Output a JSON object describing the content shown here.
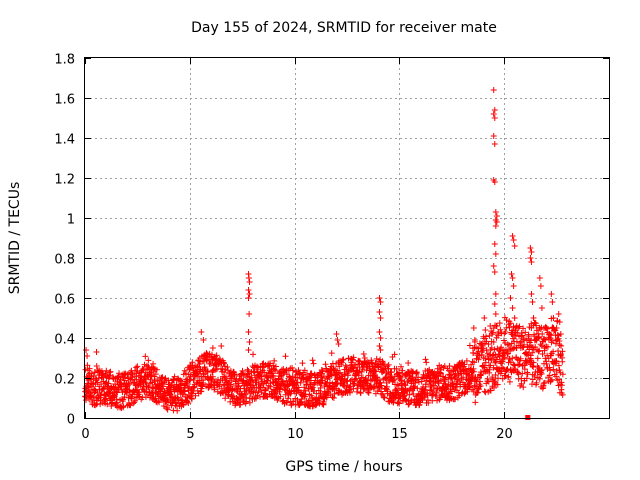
{
  "chart_data": {
    "type": "scatter",
    "title": "Day 155 of 2024, SRMTID for receiver mate",
    "xlabel": "GPS time / hours",
    "ylabel": "SRMTID / TECUs",
    "xlim": [
      0,
      25
    ],
    "ylim": [
      0,
      1.8
    ],
    "x_ticks": [
      "0",
      "5",
      "10",
      "15",
      "20"
    ],
    "y_ticks": [
      "0",
      "0.2",
      "0.4",
      "0.6",
      "0.8",
      "1",
      "1.2",
      "1.4",
      "1.6",
      "1.8"
    ],
    "x_tick_values": [
      0,
      5,
      10,
      15,
      20
    ],
    "y_tick_values": [
      0,
      0.2,
      0.4,
      0.6,
      0.8,
      1.0,
      1.2,
      1.4,
      1.6,
      1.8
    ],
    "grid": true,
    "series": [
      {
        "name": "SRMTID",
        "color": "#ff0000",
        "marker": "plus",
        "baseline_profile": [
          [
            0.0,
            0.17
          ],
          [
            0.5,
            0.15
          ],
          [
            1.0,
            0.16
          ],
          [
            1.5,
            0.14
          ],
          [
            2.0,
            0.14
          ],
          [
            2.5,
            0.17
          ],
          [
            3.0,
            0.18
          ],
          [
            3.5,
            0.16
          ],
          [
            4.0,
            0.11
          ],
          [
            4.5,
            0.13
          ],
          [
            5.0,
            0.17
          ],
          [
            5.5,
            0.22
          ],
          [
            6.0,
            0.24
          ],
          [
            6.5,
            0.21
          ],
          [
            7.0,
            0.15
          ],
          [
            7.5,
            0.15
          ],
          [
            8.0,
            0.17
          ],
          [
            8.5,
            0.19
          ],
          [
            9.0,
            0.18
          ],
          [
            9.5,
            0.16
          ],
          [
            10.0,
            0.15
          ],
          [
            10.5,
            0.15
          ],
          [
            11.0,
            0.14
          ],
          [
            11.5,
            0.16
          ],
          [
            12.0,
            0.2
          ],
          [
            12.5,
            0.21
          ],
          [
            13.0,
            0.22
          ],
          [
            13.5,
            0.2
          ],
          [
            14.0,
            0.21
          ],
          [
            14.5,
            0.17
          ],
          [
            15.0,
            0.16
          ],
          [
            15.5,
            0.15
          ],
          [
            16.0,
            0.14
          ],
          [
            16.5,
            0.16
          ],
          [
            17.0,
            0.18
          ],
          [
            17.5,
            0.17
          ],
          [
            18.0,
            0.2
          ],
          [
            18.5,
            0.23
          ],
          [
            19.0,
            0.25
          ],
          [
            19.5,
            0.3
          ],
          [
            20.0,
            0.35
          ],
          [
            20.5,
            0.33
          ],
          [
            21.0,
            0.3
          ],
          [
            21.5,
            0.32
          ],
          [
            22.0,
            0.3
          ],
          [
            22.5,
            0.35
          ],
          [
            22.8,
            0.2
          ]
        ],
        "highlights": [
          [
            0.05,
            0.34
          ],
          [
            0.1,
            0.31
          ],
          [
            0.55,
            0.33
          ],
          [
            5.55,
            0.43
          ],
          [
            5.65,
            0.39
          ],
          [
            6.1,
            0.35
          ],
          [
            6.5,
            0.36
          ],
          [
            7.8,
            0.72
          ],
          [
            7.82,
            0.7
          ],
          [
            7.85,
            0.68
          ],
          [
            7.8,
            0.64
          ],
          [
            7.85,
            0.62
          ],
          [
            7.8,
            0.6
          ],
          [
            7.83,
            0.52
          ],
          [
            7.8,
            0.43
          ],
          [
            7.85,
            0.38
          ],
          [
            7.8,
            0.34
          ],
          [
            12.0,
            0.42
          ],
          [
            12.05,
            0.39
          ],
          [
            12.1,
            0.37
          ],
          [
            13.3,
            0.32
          ],
          [
            13.35,
            0.3
          ],
          [
            14.05,
            0.6
          ],
          [
            14.1,
            0.58
          ],
          [
            14.05,
            0.53
          ],
          [
            14.1,
            0.5
          ],
          [
            14.05,
            0.43
          ],
          [
            14.1,
            0.4
          ],
          [
            14.05,
            0.36
          ],
          [
            14.1,
            0.34
          ],
          [
            18.55,
            0.45
          ],
          [
            18.6,
            0.39
          ],
          [
            18.9,
            0.37
          ],
          [
            19.05,
            0.5
          ],
          [
            19.1,
            0.44
          ],
          [
            19.5,
            1.64
          ],
          [
            19.55,
            1.54
          ],
          [
            19.5,
            1.52
          ],
          [
            19.55,
            1.5
          ],
          [
            19.5,
            1.41
          ],
          [
            19.55,
            1.37
          ],
          [
            19.5,
            1.19
          ],
          [
            19.55,
            1.18
          ],
          [
            19.6,
            1.03
          ],
          [
            19.65,
            1.01
          ],
          [
            19.6,
            0.99
          ],
          [
            19.65,
            0.98
          ],
          [
            19.6,
            0.96
          ],
          [
            19.55,
            0.87
          ],
          [
            19.6,
            0.82
          ],
          [
            19.5,
            0.76
          ],
          [
            19.55,
            0.73
          ],
          [
            19.6,
            0.62
          ],
          [
            19.55,
            0.57
          ],
          [
            19.6,
            0.52
          ],
          [
            19.65,
            0.46
          ],
          [
            19.7,
            0.42
          ],
          [
            19.5,
            0.38
          ],
          [
            20.4,
            0.91
          ],
          [
            20.45,
            0.89
          ],
          [
            20.5,
            0.86
          ],
          [
            20.35,
            0.72
          ],
          [
            20.4,
            0.7
          ],
          [
            20.45,
            0.66
          ],
          [
            20.3,
            0.6
          ],
          [
            20.4,
            0.55
          ],
          [
            20.5,
            0.5
          ],
          [
            20.6,
            0.46
          ],
          [
            20.35,
            0.42
          ],
          [
            21.25,
            0.85
          ],
          [
            21.3,
            0.83
          ],
          [
            21.25,
            0.8
          ],
          [
            21.3,
            0.78
          ],
          [
            21.7,
            0.7
          ],
          [
            21.75,
            0.66
          ],
          [
            21.3,
            0.62
          ],
          [
            21.35,
            0.58
          ],
          [
            21.8,
            0.55
          ],
          [
            21.4,
            0.5
          ],
          [
            21.9,
            0.45
          ],
          [
            22.25,
            0.62
          ],
          [
            22.3,
            0.58
          ],
          [
            22.35,
            0.5
          ],
          [
            22.6,
            0.52
          ],
          [
            22.65,
            0.48
          ],
          [
            22.5,
            0.45
          ],
          [
            22.7,
            0.42
          ],
          [
            22.2,
            0.4
          ]
        ],
        "outliers": [
          [
            21.1,
            0.0
          ],
          [
            21.15,
            0.0
          ]
        ]
      }
    ]
  }
}
